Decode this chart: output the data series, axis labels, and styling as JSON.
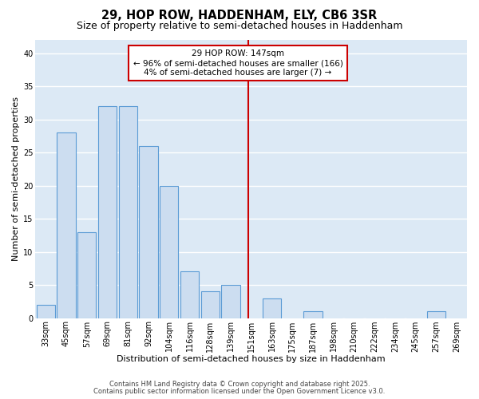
{
  "title": "29, HOP ROW, HADDENHAM, ELY, CB6 3SR",
  "subtitle": "Size of property relative to semi-detached houses in Haddenham",
  "xlabel": "Distribution of semi-detached houses by size in Haddenham",
  "ylabel": "Number of semi-detached properties",
  "categories": [
    "33sqm",
    "45sqm",
    "57sqm",
    "69sqm",
    "81sqm",
    "92sqm",
    "104sqm",
    "116sqm",
    "128sqm",
    "139sqm",
    "151sqm",
    "163sqm",
    "175sqm",
    "187sqm",
    "198sqm",
    "210sqm",
    "222sqm",
    "234sqm",
    "245sqm",
    "257sqm",
    "269sqm"
  ],
  "values": [
    2,
    28,
    13,
    32,
    32,
    26,
    20,
    7,
    4,
    5,
    0,
    3,
    0,
    1,
    0,
    0,
    0,
    0,
    0,
    1,
    0
  ],
  "bar_color": "#ccddf0",
  "bar_edgecolor": "#5b9bd5",
  "fig_background_color": "#ffffff",
  "plot_background_color": "#dce9f5",
  "grid_color": "#ffffff",
  "vline_x": 9.85,
  "vline_color": "#cc0000",
  "vline_label": "29 HOP ROW: 147sqm",
  "annotation_line1": "← 96% of semi-detached houses are smaller (166)",
  "annotation_line2": "4% of semi-detached houses are larger (7) →",
  "annotation_box_color": "#ffffff",
  "annotation_box_edgecolor": "#cc0000",
  "ylim": [
    0,
    42
  ],
  "yticks": [
    0,
    5,
    10,
    15,
    20,
    25,
    30,
    35,
    40
  ],
  "footer_line1": "Contains HM Land Registry data © Crown copyright and database right 2025.",
  "footer_line2": "Contains public sector information licensed under the Open Government Licence v3.0.",
  "title_fontsize": 10.5,
  "subtitle_fontsize": 9,
  "xlabel_fontsize": 8,
  "ylabel_fontsize": 8,
  "tick_fontsize": 7,
  "annotation_fontsize": 7.5,
  "footer_fontsize": 6
}
